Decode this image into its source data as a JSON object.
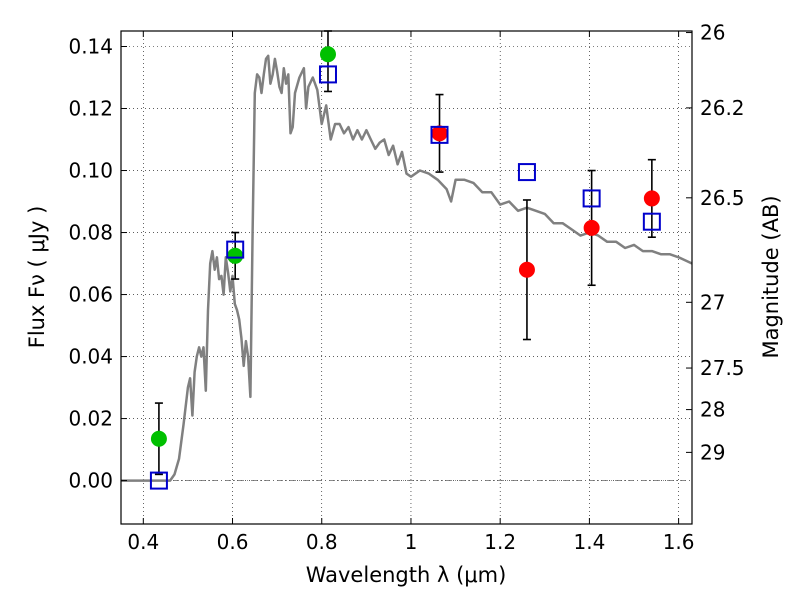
{
  "chart_data": {
    "type": "scatter",
    "title": "",
    "xlabel": "Wavelength  λ (μm)",
    "ylabel": "Flux  Fν  ( μJy )",
    "y2label": "Magnitude (AB)",
    "xlim": [
      0.35,
      1.63
    ],
    "ylim": [
      -0.014,
      0.145
    ],
    "grid": true,
    "x_ticks": [
      0.4,
      0.6,
      0.8,
      1.0,
      1.2,
      1.4,
      1.6
    ],
    "x_tick_labels": [
      "0.4",
      "0.6",
      "0.8",
      "1",
      "1.2",
      "1.4",
      "1.6"
    ],
    "y_ticks": [
      0.0,
      0.02,
      0.04,
      0.06,
      0.08,
      0.1,
      0.12,
      0.14
    ],
    "y_tick_labels": [
      "0.00",
      "0.02",
      "0.04",
      "0.06",
      "0.08",
      "0.10",
      "0.12",
      "0.14"
    ],
    "right_axis_ticks": [
      {
        "label": "26",
        "flux": 0.1445
      },
      {
        "label": "26.2",
        "flux": 0.1202
      },
      {
        "label": "26.5",
        "flux": 0.0912
      },
      {
        "label": "27",
        "flux": 0.0575
      },
      {
        "label": "27.5",
        "flux": 0.0363
      },
      {
        "label": "28",
        "flux": 0.0229
      },
      {
        "label": "29",
        "flux": 0.0091
      }
    ],
    "colors": {
      "template": "#808080",
      "green_points": "#00c000",
      "red_points": "#ff0000",
      "model_squares": "#0000cc",
      "error_bars": "#000000"
    },
    "series": [
      {
        "marker": "line",
        "color": "#808080",
        "x": [
          0.35,
          0.46,
          0.47,
          0.48,
          0.49,
          0.5,
          0.505,
          0.51,
          0.515,
          0.52,
          0.525,
          0.53,
          0.535,
          0.54,
          0.545,
          0.55,
          0.555,
          0.56,
          0.565,
          0.57,
          0.575,
          0.58,
          0.585,
          0.59,
          0.595,
          0.6,
          0.605,
          0.61,
          0.615,
          0.62,
          0.625,
          0.63,
          0.635,
          0.64,
          0.645,
          0.65,
          0.655,
          0.66,
          0.665,
          0.67,
          0.675,
          0.68,
          0.685,
          0.69,
          0.695,
          0.7,
          0.705,
          0.71,
          0.715,
          0.72,
          0.725,
          0.73,
          0.735,
          0.74,
          0.75,
          0.76,
          0.765,
          0.77,
          0.78,
          0.79,
          0.8,
          0.81,
          0.82,
          0.83,
          0.84,
          0.85,
          0.86,
          0.87,
          0.88,
          0.89,
          0.9,
          0.91,
          0.92,
          0.93,
          0.94,
          0.95,
          0.96,
          0.97,
          0.98,
          0.99,
          1.0,
          1.02,
          1.04,
          1.06,
          1.08,
          1.09,
          1.1,
          1.12,
          1.14,
          1.16,
          1.18,
          1.2,
          1.22,
          1.24,
          1.26,
          1.28,
          1.3,
          1.32,
          1.34,
          1.36,
          1.38,
          1.4,
          1.42,
          1.44,
          1.46,
          1.48,
          1.5,
          1.52,
          1.54,
          1.56,
          1.58,
          1.6,
          1.63
        ],
        "y": [
          0.0,
          0.0,
          0.002,
          0.007,
          0.018,
          0.03,
          0.033,
          0.021,
          0.035,
          0.04,
          0.043,
          0.04,
          0.043,
          0.029,
          0.055,
          0.07,
          0.074,
          0.068,
          0.072,
          0.065,
          0.066,
          0.06,
          0.072,
          0.067,
          0.061,
          0.066,
          0.057,
          0.055,
          0.052,
          0.046,
          0.037,
          0.045,
          0.04,
          0.027,
          0.08,
          0.125,
          0.131,
          0.13,
          0.125,
          0.131,
          0.136,
          0.137,
          0.128,
          0.131,
          0.136,
          0.132,
          0.127,
          0.125,
          0.133,
          0.128,
          0.131,
          0.112,
          0.114,
          0.125,
          0.13,
          0.133,
          0.12,
          0.127,
          0.13,
          0.126,
          0.115,
          0.121,
          0.11,
          0.115,
          0.115,
          0.112,
          0.114,
          0.11,
          0.113,
          0.11,
          0.113,
          0.11,
          0.107,
          0.109,
          0.11,
          0.105,
          0.108,
          0.102,
          0.106,
          0.099,
          0.098,
          0.1,
          0.099,
          0.097,
          0.094,
          0.09,
          0.097,
          0.097,
          0.096,
          0.093,
          0.093,
          0.089,
          0.09,
          0.087,
          0.088,
          0.087,
          0.086,
          0.083,
          0.083,
          0.081,
          0.079,
          0.08,
          0.079,
          0.077,
          0.077,
          0.075,
          0.076,
          0.074,
          0.074,
          0.073,
          0.073,
          0.072,
          0.07
        ]
      },
      {
        "marker": "circle",
        "color": "#00c000",
        "x": [
          0.435,
          0.606,
          0.814
        ],
        "y": [
          0.0135,
          0.0725,
          0.1375
        ],
        "yerr": [
          0.0115,
          0.0075,
          0.012
        ]
      },
      {
        "marker": "circle",
        "color": "#ff0000",
        "x": [
          1.064,
          1.26,
          1.405,
          1.54
        ],
        "y": [
          0.112,
          0.068,
          0.0815,
          0.091
        ],
        "yerr": [
          0.0125,
          0.0225,
          0.0185,
          0.0125
        ]
      },
      {
        "marker": "square",
        "color": "#0000cc",
        "x": [
          0.435,
          0.606,
          0.814,
          1.064,
          1.26,
          1.405,
          1.54
        ],
        "y": [
          0.0,
          0.0745,
          0.131,
          0.1115,
          0.0995,
          0.091,
          0.0835
        ]
      }
    ]
  }
}
